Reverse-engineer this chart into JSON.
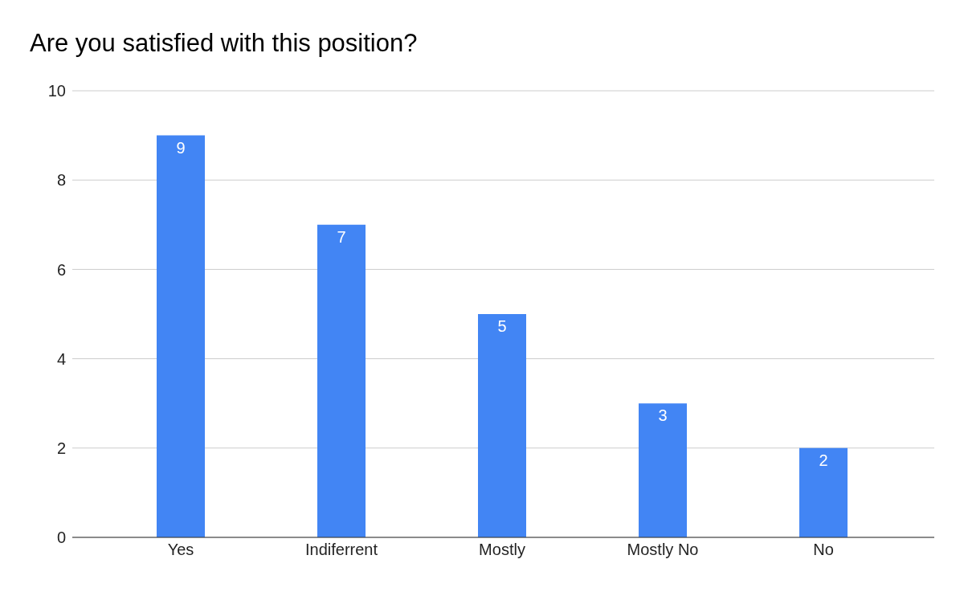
{
  "chart_data": {
    "type": "bar",
    "title": "Are you satisfied with this position?",
    "categories": [
      "Yes",
      "Indiferrent",
      "Mostly",
      "Mostly No",
      "No"
    ],
    "values": [
      9,
      7,
      5,
      3,
      2
    ],
    "color": "#4285f4",
    "ylim": [
      0,
      10
    ],
    "yticks": [
      0,
      2,
      4,
      6,
      8,
      10
    ],
    "grid": "y",
    "data_labels": true,
    "legend": false
  }
}
